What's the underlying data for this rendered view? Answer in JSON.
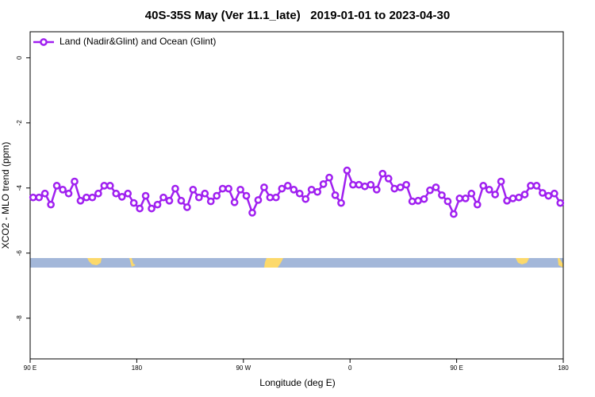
{
  "chart_data": {
    "type": "line",
    "title": "40S-35S May (Ver 11.1_late)   2019-01-01 to 2023-04-30",
    "x_label": "Longitude (deg E)",
    "y_label": "XCO2 - MLO trend (ppm)",
    "xlim": [
      90,
      540
    ],
    "xticks": [
      {
        "value": 90,
        "label": "90 E"
      },
      180,
      {
        "value": 270,
        "label": "90 W"
      },
      {
        "value": 360,
        "label": "0"
      },
      {
        "value": 450,
        "label": "90 E"
      },
      {
        "value": 540,
        "label": "180"
      }
    ],
    "ylim": [
      -9.25,
      0.8
    ],
    "yticks": [
      0,
      -2,
      -4,
      -6,
      -8
    ],
    "legend": "top-left",
    "x": [
      92.5,
      97.5,
      102.5,
      107.5,
      112.5,
      117.5,
      122.5,
      127.5,
      132.5,
      137.5,
      142.5,
      147.5,
      152.5,
      157.5,
      162.5,
      167.5,
      172.5,
      177.5,
      182.5,
      187.5,
      192.5,
      197.5,
      202.5,
      207.5,
      212.5,
      217.5,
      222.5,
      227.5,
      232.5,
      237.5,
      242.5,
      247.5,
      252.5,
      257.5,
      262.5,
      267.5,
      272.5,
      277.5,
      282.5,
      287.5,
      292.5,
      297.5,
      302.5,
      307.5,
      312.5,
      317.5,
      322.5,
      327.5,
      332.5,
      337.5,
      342.5,
      347.5,
      352.5,
      357.5,
      362.5,
      367.5,
      372.5,
      377.5,
      382.5,
      387.5,
      392.5,
      397.5,
      402.5,
      407.5,
      412.5,
      417.5,
      422.5,
      427.5,
      432.5,
      437.5,
      442.5,
      447.5,
      452.5,
      457.5,
      462.5,
      467.5,
      472.5,
      477.5,
      482.5,
      487.5,
      492.5,
      497.5,
      502.5,
      507.5,
      512.5,
      517.5,
      522.5,
      527.5,
      532.5,
      537.5
    ],
    "series": [
      {
        "name": "Land (Nadir&Glint) and Ocean (Glint)",
        "color": "#a020f0",
        "values": [
          -4.29,
          -4.29,
          -4.17,
          -4.51,
          -3.93,
          -4.05,
          -4.17,
          -3.8,
          -4.39,
          -4.29,
          -4.29,
          -4.17,
          -3.93,
          -3.93,
          -4.17,
          -4.27,
          -4.17,
          -4.46,
          -4.63,
          -4.24,
          -4.63,
          -4.51,
          -4.29,
          -4.39,
          -4.02,
          -4.39,
          -4.59,
          -4.05,
          -4.29,
          -4.17,
          -4.41,
          -4.24,
          -4.02,
          -4.02,
          -4.44,
          -4.05,
          -4.24,
          -4.76,
          -4.37,
          -3.98,
          -4.29,
          -4.29,
          -4.02,
          -3.93,
          -4.05,
          -4.17,
          -4.34,
          -4.05,
          -4.12,
          -3.88,
          -3.68,
          -4.22,
          -4.46,
          -3.46,
          -3.9,
          -3.9,
          -3.95,
          -3.9,
          -4.05,
          -3.56,
          -3.71,
          -4.02,
          -3.98,
          -3.9,
          -4.41,
          -4.39,
          -4.34,
          -4.07,
          -3.98,
          -4.22,
          -4.41,
          -4.8,
          -4.32,
          -4.32,
          -4.17,
          -4.51,
          -3.93,
          -4.05,
          -4.2,
          -3.8,
          -4.39,
          -4.32,
          -4.29,
          -4.2,
          -3.93,
          -3.93,
          -4.15,
          -4.24,
          -4.17,
          -4.46
        ]
      }
    ]
  }
}
